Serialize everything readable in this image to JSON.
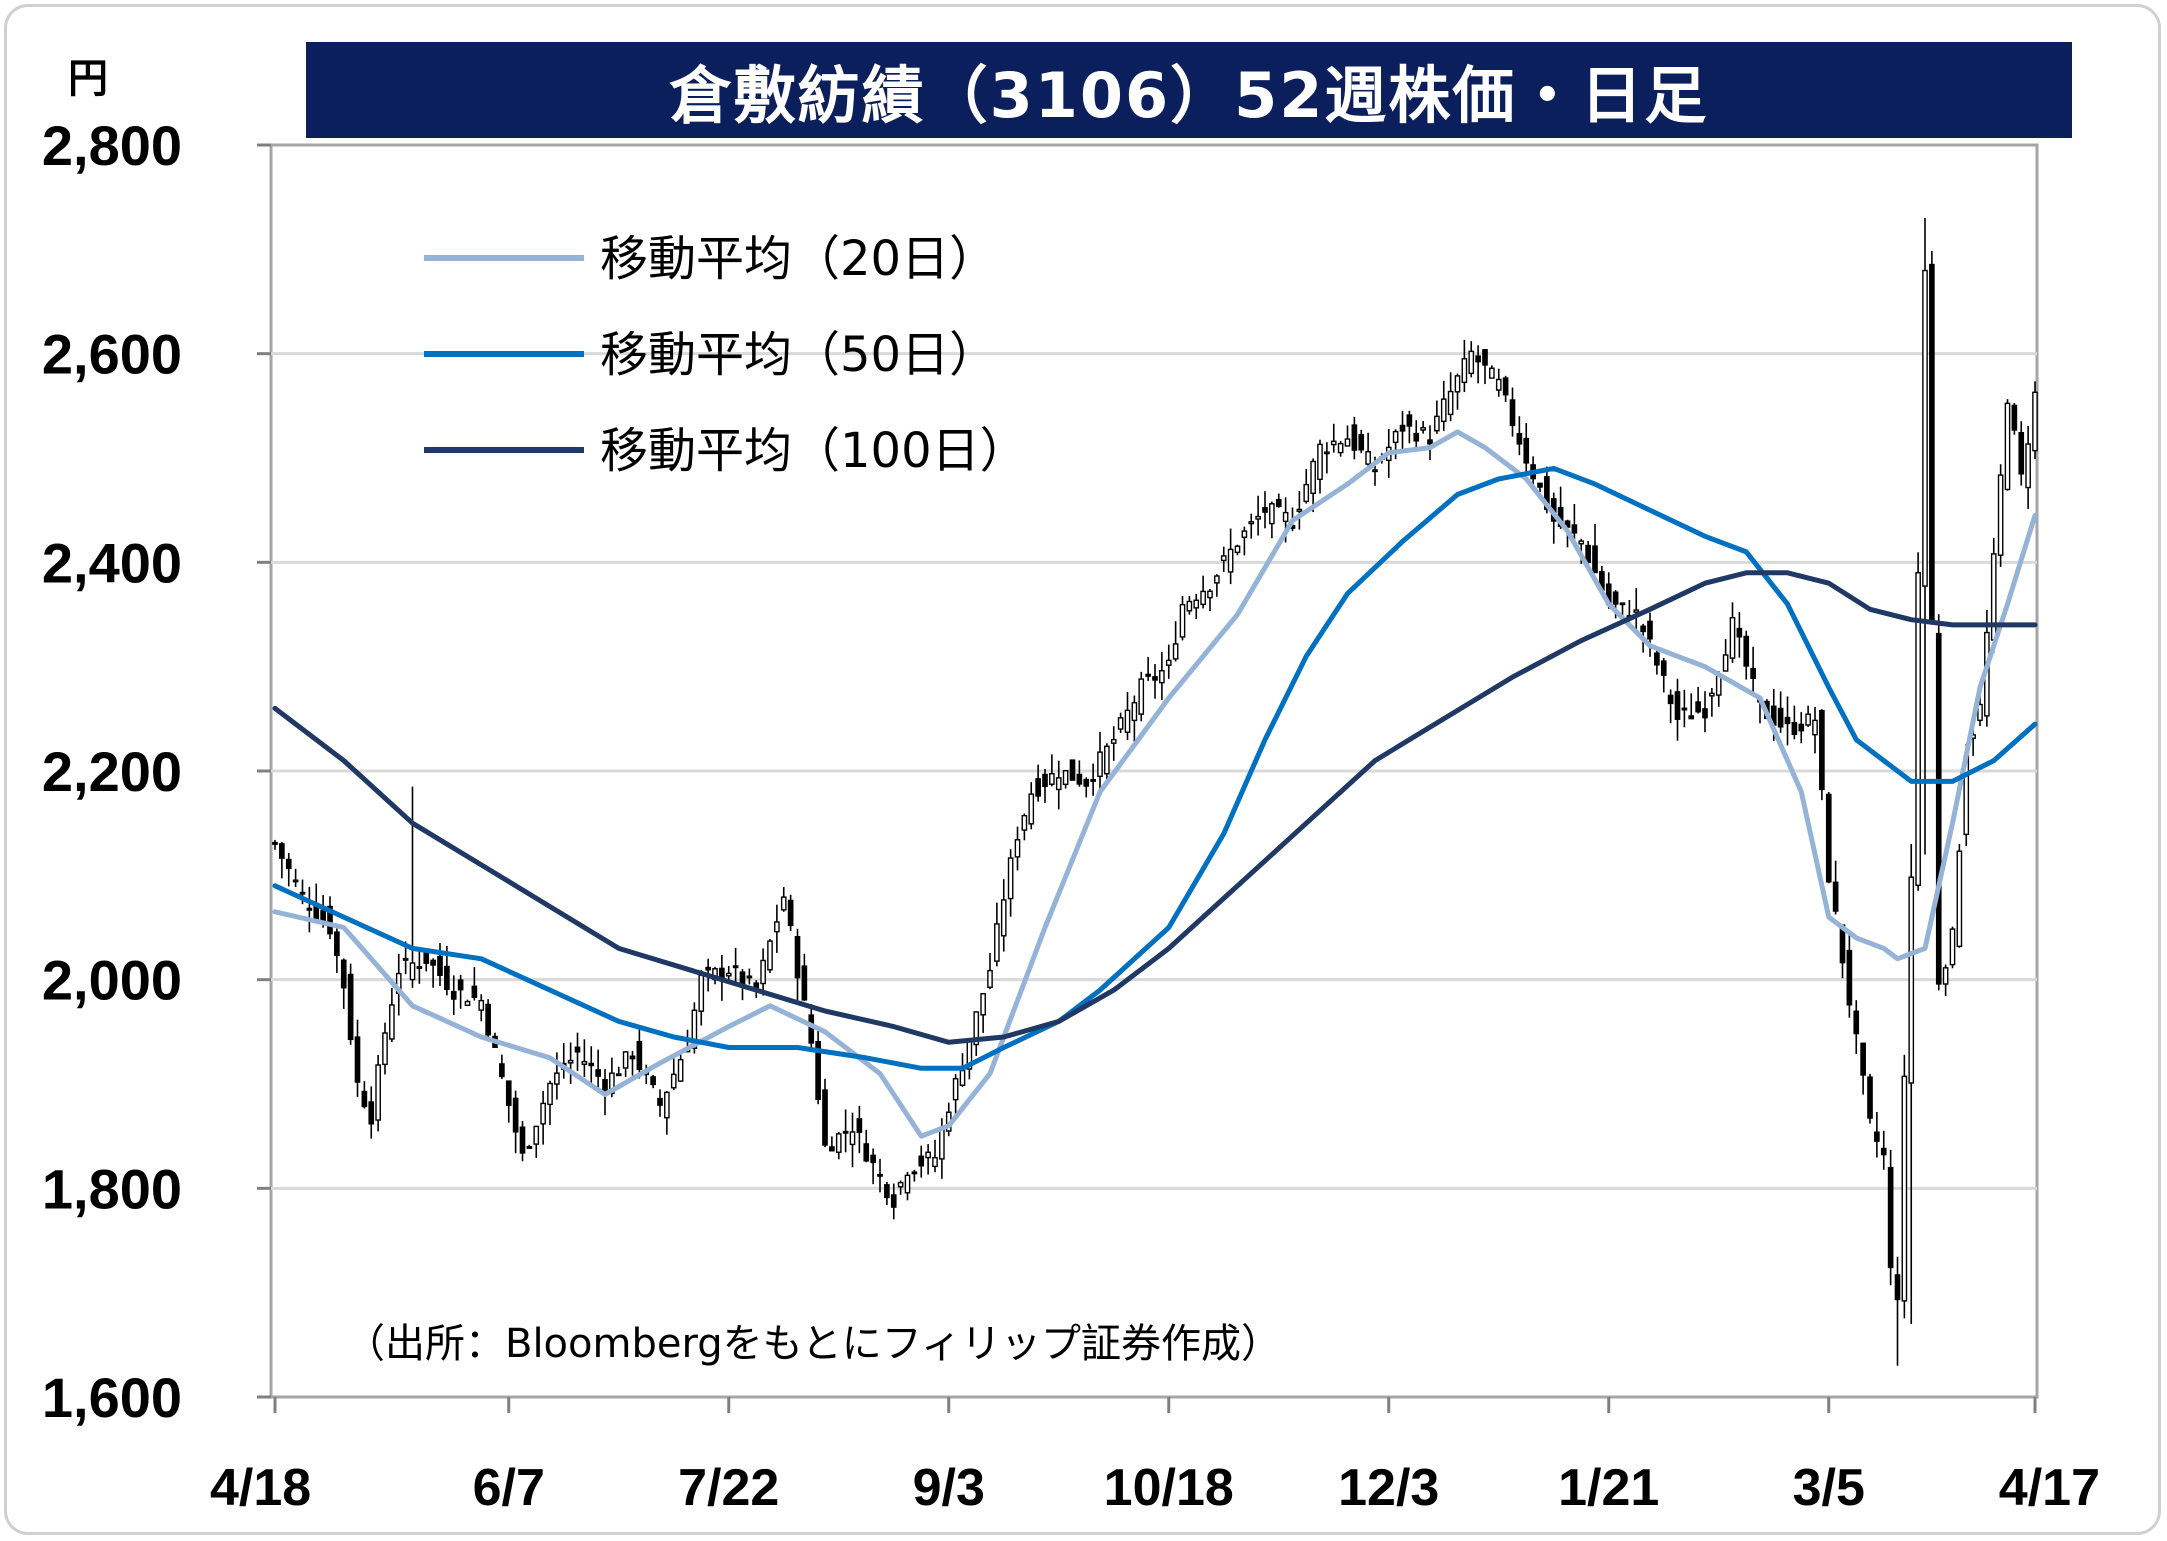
{
  "title": "倉敷紡績（3106）52週株価・日足",
  "unit": "円",
  "source_note": "（出所：Bloombergをもとにフィリップ証券作成）",
  "colors": {
    "title_bg": "#0b1f5c",
    "ma20": "#95b3d7",
    "ma50": "#0070c0",
    "ma100": "#1f3864",
    "grid": "#d9d9d9",
    "candle": "#000000"
  },
  "chart_data": {
    "type": "candlestick",
    "title": "倉敷紡績（3106）52週株価・日足",
    "ylabel": "円",
    "ylim": [
      1600,
      2800
    ],
    "y_ticks": [
      1600,
      1800,
      2000,
      2200,
      2400,
      2600,
      2800
    ],
    "y_tick_labels": [
      "1,600",
      "1,800",
      "2,000",
      "2,200",
      "2,400",
      "2,600",
      "2,800"
    ],
    "x_tick_labels": [
      "4/18",
      "6/7",
      "7/22",
      "9/3",
      "10/18",
      "12/3",
      "1/21",
      "3/5",
      "4/17"
    ],
    "x_tick_index": [
      0,
      34,
      66,
      98,
      130,
      162,
      194,
      226,
      256
    ],
    "n_days": 257,
    "grid": true,
    "legend_position": "top-left",
    "series": [
      {
        "name": "移動平均（20日）",
        "kind": "line",
        "color": "#95b3d7",
        "points": [
          [
            0,
            2065
          ],
          [
            10,
            2050
          ],
          [
            20,
            1975
          ],
          [
            30,
            1945
          ],
          [
            40,
            1925
          ],
          [
            48,
            1890
          ],
          [
            56,
            1920
          ],
          [
            66,
            1955
          ],
          [
            72,
            1975
          ],
          [
            80,
            1950
          ],
          [
            88,
            1910
          ],
          [
            94,
            1850
          ],
          [
            98,
            1860
          ],
          [
            104,
            1910
          ],
          [
            112,
            2050
          ],
          [
            120,
            2180
          ],
          [
            130,
            2270
          ],
          [
            140,
            2350
          ],
          [
            148,
            2440
          ],
          [
            156,
            2475
          ],
          [
            162,
            2505
          ],
          [
            168,
            2510
          ],
          [
            172,
            2525
          ],
          [
            176,
            2510
          ],
          [
            182,
            2480
          ],
          [
            188,
            2430
          ],
          [
            194,
            2360
          ],
          [
            200,
            2320
          ],
          [
            208,
            2300
          ],
          [
            216,
            2270
          ],
          [
            222,
            2180
          ],
          [
            226,
            2060
          ],
          [
            230,
            2040
          ],
          [
            234,
            2030
          ],
          [
            236,
            2020
          ],
          [
            240,
            2030
          ],
          [
            244,
            2150
          ],
          [
            248,
            2280
          ],
          [
            252,
            2360
          ],
          [
            256,
            2445
          ]
        ]
      },
      {
        "name": "移動平均（50日）",
        "kind": "line",
        "color": "#0070c0",
        "points": [
          [
            0,
            2090
          ],
          [
            10,
            2060
          ],
          [
            20,
            2030
          ],
          [
            30,
            2020
          ],
          [
            40,
            1990
          ],
          [
            50,
            1960
          ],
          [
            58,
            1945
          ],
          [
            66,
            1935
          ],
          [
            76,
            1935
          ],
          [
            86,
            1925
          ],
          [
            94,
            1915
          ],
          [
            100,
            1915
          ],
          [
            106,
            1935
          ],
          [
            114,
            1960
          ],
          [
            120,
            1990
          ],
          [
            130,
            2050
          ],
          [
            138,
            2140
          ],
          [
            144,
            2230
          ],
          [
            150,
            2310
          ],
          [
            156,
            2370
          ],
          [
            164,
            2420
          ],
          [
            172,
            2465
          ],
          [
            178,
            2480
          ],
          [
            186,
            2490
          ],
          [
            192,
            2475
          ],
          [
            200,
            2450
          ],
          [
            208,
            2425
          ],
          [
            214,
            2410
          ],
          [
            220,
            2360
          ],
          [
            226,
            2280
          ],
          [
            230,
            2230
          ],
          [
            234,
            2210
          ],
          [
            238,
            2190
          ],
          [
            244,
            2190
          ],
          [
            250,
            2210
          ],
          [
            256,
            2245
          ]
        ]
      },
      {
        "name": "移動平均（100日）",
        "kind": "line",
        "color": "#1f3864",
        "points": [
          [
            0,
            2260
          ],
          [
            10,
            2210
          ],
          [
            20,
            2150
          ],
          [
            30,
            2110
          ],
          [
            40,
            2070
          ],
          [
            50,
            2030
          ],
          [
            60,
            2010
          ],
          [
            70,
            1990
          ],
          [
            80,
            1970
          ],
          [
            90,
            1955
          ],
          [
            98,
            1940
          ],
          [
            106,
            1945
          ],
          [
            114,
            1960
          ],
          [
            122,
            1990
          ],
          [
            130,
            2030
          ],
          [
            140,
            2090
          ],
          [
            150,
            2150
          ],
          [
            160,
            2210
          ],
          [
            170,
            2250
          ],
          [
            180,
            2290
          ],
          [
            190,
            2325
          ],
          [
            200,
            2355
          ],
          [
            208,
            2380
          ],
          [
            214,
            2390
          ],
          [
            220,
            2390
          ],
          [
            226,
            2380
          ],
          [
            232,
            2355
          ],
          [
            238,
            2345
          ],
          [
            244,
            2340
          ],
          [
            250,
            2340
          ],
          [
            256,
            2340
          ]
        ]
      },
      {
        "name": "日足",
        "kind": "candlestick",
        "color": "#000000",
        "anchors_close": [
          [
            0,
            2130
          ],
          [
            4,
            2080
          ],
          [
            8,
            2050
          ],
          [
            10,
            1995
          ],
          [
            12,
            1900
          ],
          [
            14,
            1870
          ],
          [
            16,
            1950
          ],
          [
            18,
            2010
          ],
          [
            22,
            2020
          ],
          [
            26,
            1990
          ],
          [
            30,
            1980
          ],
          [
            34,
            1880
          ],
          [
            36,
            1830
          ],
          [
            40,
            1900
          ],
          [
            44,
            1930
          ],
          [
            48,
            1900
          ],
          [
            52,
            1930
          ],
          [
            56,
            1880
          ],
          [
            60,
            1940
          ],
          [
            62,
            2000
          ],
          [
            66,
            2010
          ],
          [
            70,
            1990
          ],
          [
            74,
            2080
          ],
          [
            76,
            2010
          ],
          [
            78,
            1940
          ],
          [
            80,
            1840
          ],
          [
            84,
            1860
          ],
          [
            88,
            1810
          ],
          [
            90,
            1790
          ],
          [
            92,
            1820
          ],
          [
            96,
            1830
          ],
          [
            98,
            1880
          ],
          [
            100,
            1920
          ],
          [
            104,
            2010
          ],
          [
            106,
            2080
          ],
          [
            108,
            2140
          ],
          [
            110,
            2180
          ],
          [
            114,
            2200
          ],
          [
            118,
            2190
          ],
          [
            122,
            2230
          ],
          [
            126,
            2280
          ],
          [
            130,
            2300
          ],
          [
            132,
            2360
          ],
          [
            136,
            2380
          ],
          [
            140,
            2420
          ],
          [
            144,
            2450
          ],
          [
            148,
            2440
          ],
          [
            152,
            2510
          ],
          [
            156,
            2520
          ],
          [
            160,
            2490
          ],
          [
            164,
            2530
          ],
          [
            168,
            2520
          ],
          [
            170,
            2550
          ],
          [
            174,
            2600
          ],
          [
            178,
            2570
          ],
          [
            182,
            2500
          ],
          [
            186,
            2440
          ],
          [
            190,
            2420
          ],
          [
            194,
            2360
          ],
          [
            198,
            2350
          ],
          [
            200,
            2320
          ],
          [
            204,
            2250
          ],
          [
            208,
            2260
          ],
          [
            212,
            2340
          ],
          [
            216,
            2260
          ],
          [
            220,
            2240
          ],
          [
            224,
            2250
          ],
          [
            226,
            2100
          ],
          [
            228,
            2020
          ],
          [
            230,
            1940
          ],
          [
            232,
            1860
          ],
          [
            234,
            1830
          ],
          [
            235,
            1720
          ],
          [
            236,
            1700
          ],
          [
            238,
            2100
          ],
          [
            240,
            2680
          ],
          [
            242,
            2000
          ],
          [
            244,
            2040
          ],
          [
            246,
            2220
          ],
          [
            248,
            2260
          ],
          [
            250,
            2400
          ],
          [
            252,
            2560
          ],
          [
            254,
            2480
          ],
          [
            256,
            2560
          ]
        ]
      }
    ]
  }
}
